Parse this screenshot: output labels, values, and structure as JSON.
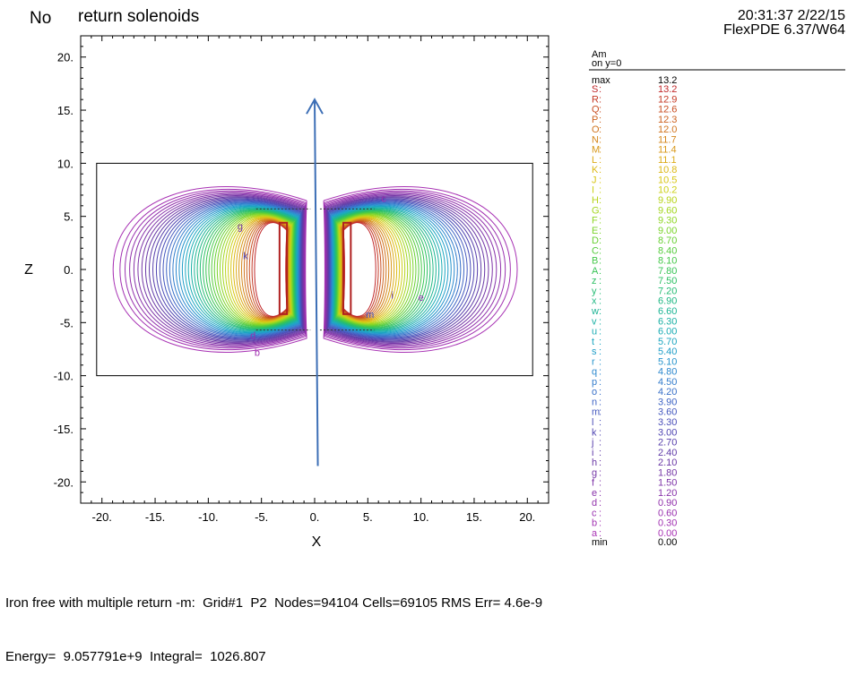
{
  "header": {
    "annotation": "No",
    "title": "return solenoids",
    "timestamp": "20:31:37 2/22/15",
    "software": "FlexPDE 6.37/W64"
  },
  "legend": {
    "variable": "Am",
    "subtitle": "on y=0",
    "max_label": "max",
    "max_value": "13.2",
    "min_label": "min",
    "min_value": "0.00",
    "levels": [
      {
        "letter": "S",
        "value": "13.2",
        "color": "#c0282a"
      },
      {
        "letter": "R",
        "value": "12.9",
        "color": "#c43a26"
      },
      {
        "letter": "Q",
        "value": "12.6",
        "color": "#c84e22"
      },
      {
        "letter": "P",
        "value": "12.3",
        "color": "#cc6220"
      },
      {
        "letter": "O",
        "value": "12.0",
        "color": "#d0741e"
      },
      {
        "letter": "N",
        "value": "11.7",
        "color": "#d4861c"
      },
      {
        "letter": "M",
        "value": "11.4",
        "color": "#d8981a"
      },
      {
        "letter": "L",
        "value": "11.1",
        "color": "#dcaa18"
      },
      {
        "letter": "K",
        "value": "10.8",
        "color": "#dcb816"
      },
      {
        "letter": "J",
        "value": "10.5",
        "color": "#d8c616"
      },
      {
        "letter": "I",
        "value": "10.2",
        "color": "#ccd018"
      },
      {
        "letter": "H",
        "value": "9.90",
        "color": "#b8d41c"
      },
      {
        "letter": "G",
        "value": "9.60",
        "color": "#a4d620"
      },
      {
        "letter": "F",
        "value": "9.30",
        "color": "#90d626"
      },
      {
        "letter": "E",
        "value": "9.00",
        "color": "#7cd42c"
      },
      {
        "letter": "D",
        "value": "8.70",
        "color": "#68d034"
      },
      {
        "letter": "C",
        "value": "8.40",
        "color": "#56cc3e"
      },
      {
        "letter": "B",
        "value": "8.10",
        "color": "#46c84a"
      },
      {
        "letter": "A",
        "value": "7.80",
        "color": "#38c456"
      },
      {
        "letter": "z",
        "value": "7.50",
        "color": "#2ec064"
      },
      {
        "letter": "y",
        "value": "7.20",
        "color": "#26bc74"
      },
      {
        "letter": "x",
        "value": "6.90",
        "color": "#20b884"
      },
      {
        "letter": "w",
        "value": "6.60",
        "color": "#1cb494"
      },
      {
        "letter": "v",
        "value": "6.30",
        "color": "#1ab0a4"
      },
      {
        "letter": "u",
        "value": "6.00",
        "color": "#1aacb4"
      },
      {
        "letter": "t",
        "value": "5.70",
        "color": "#1ca6c0"
      },
      {
        "letter": "s",
        "value": "5.40",
        "color": "#209ec8"
      },
      {
        "letter": "r",
        "value": "5.10",
        "color": "#2694cc"
      },
      {
        "letter": "q",
        "value": "4.80",
        "color": "#2c88ce"
      },
      {
        "letter": "p",
        "value": "4.50",
        "color": "#327ccc"
      },
      {
        "letter": "o",
        "value": "4.20",
        "color": "#3870c8"
      },
      {
        "letter": "n",
        "value": "3.90",
        "color": "#3e64c4"
      },
      {
        "letter": "m",
        "value": "3.60",
        "color": "#4458be"
      },
      {
        "letter": "l",
        "value": "3.30",
        "color": "#4a4eb8"
      },
      {
        "letter": "k",
        "value": "3.00",
        "color": "#5046b2"
      },
      {
        "letter": "j",
        "value": "2.70",
        "color": "#5840ac"
      },
      {
        "letter": "i",
        "value": "2.40",
        "color": "#603ca8"
      },
      {
        "letter": "h",
        "value": "2.10",
        "color": "#6a38a6"
      },
      {
        "letter": "g",
        "value": "1.80",
        "color": "#7436a6"
      },
      {
        "letter": "f",
        "value": "1.50",
        "color": "#7e34a8"
      },
      {
        "letter": "e",
        "value": "1.20",
        "color": "#8832aa"
      },
      {
        "letter": "d",
        "value": "0.90",
        "color": "#9232ac"
      },
      {
        "letter": "c",
        "value": "0.60",
        "color": "#9a32b0"
      },
      {
        "letter": "b",
        "value": "0.30",
        "color": "#a232b2"
      },
      {
        "letter": "a",
        "value": "0.00",
        "color": "#a832b4"
      }
    ]
  },
  "chart_data": {
    "type": "contour",
    "title": "return solenoids",
    "xlabel": "X",
    "ylabel": "Z",
    "xlim": [
      -22,
      22
    ],
    "ylim": [
      -22,
      22
    ],
    "xticks": [
      -20,
      -15,
      -10,
      -5,
      0,
      5,
      10,
      15,
      20
    ],
    "xtick_labels": [
      "-20.",
      "-15.",
      "-10.",
      "-5.",
      "0.",
      "5.",
      "10.",
      "15.",
      "20."
    ],
    "yticks": [
      20,
      15,
      10,
      5,
      0,
      -5,
      -10,
      -15,
      -20
    ],
    "ytick_labels": [
      "20.",
      "15.",
      "10.",
      "5.",
      "0.",
      "-5.",
      "-10.",
      "-15.",
      "-20."
    ],
    "domain_box": {
      "x": [
        -20.5,
        20.5
      ],
      "z": [
        -10,
        10
      ]
    },
    "coil_left": {
      "x": [
        -3.3,
        -2.6
      ],
      "z": [
        -4.2,
        4.4
      ]
    },
    "coil_right": {
      "x": [
        2.7,
        3.4
      ],
      "z": [
        -4.2,
        4.4
      ]
    },
    "arrow": {
      "from": [
        0.3,
        -18.5
      ],
      "to": [
        0.0,
        16.0
      ],
      "color": "#3d6fb6"
    },
    "contour_labels": [
      {
        "text": "c",
        "x": 6.5,
        "z": 6.7
      },
      {
        "text": "g",
        "x": -7.0,
        "z": 4.1
      },
      {
        "text": "k",
        "x": -6.5,
        "z": 1.3
      },
      {
        "text": "i",
        "x": 7.3,
        "z": -2.4
      },
      {
        "text": "e",
        "x": 10.0,
        "z": -2.6
      },
      {
        "text": "m",
        "x": 5.2,
        "z": -4.2
      },
      {
        "text": "d",
        "x": -5.8,
        "z": -6.2
      },
      {
        "text": "b",
        "x": -5.4,
        "z": -7.8
      }
    ]
  },
  "footer": {
    "line1": "Iron free with multiple return -m:  Grid#1  P2  Nodes=94104 Cells=69105 RMS Err= 4.6e-9",
    "line2": "Energy=  9.057791e+9  Integral=  1026.807"
  }
}
